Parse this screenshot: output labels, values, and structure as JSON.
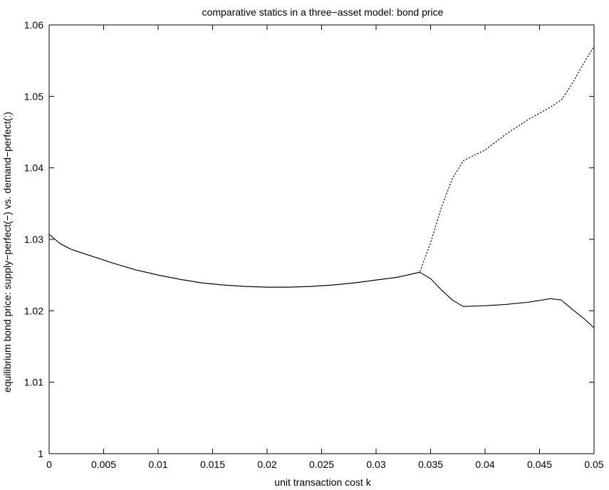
{
  "chart_data": {
    "type": "line",
    "title": "comparative statics in a three−asset model: bond price",
    "xlabel": "unit transaction cost k",
    "ylabel": "equilibrium bond price: supply−perfect(−) vs. demand−perfect(:)",
    "xlim": [
      0,
      0.05
    ],
    "ylim": [
      1,
      1.06
    ],
    "x_ticks": [
      "0",
      "0.005",
      "0.01",
      "0.015",
      "0.02",
      "0.025",
      "0.03",
      "0.035",
      "0.04",
      "0.045",
      "0.05"
    ],
    "y_ticks": [
      "1",
      "1.01",
      "1.02",
      "1.03",
      "1.04",
      "1.05",
      "1.06"
    ],
    "grid": false,
    "series": [
      {
        "name": "supply-perfect",
        "style": "solid",
        "color": "#000000",
        "x": [
          0,
          0.001,
          0.002,
          0.004,
          0.006,
          0.008,
          0.01,
          0.012,
          0.014,
          0.016,
          0.018,
          0.02,
          0.022,
          0.024,
          0.026,
          0.028,
          0.03,
          0.032,
          0.034,
          0.035,
          0.036,
          0.037,
          0.038,
          0.04,
          0.042,
          0.044,
          0.046,
          0.047,
          0.048,
          0.049,
          0.05
        ],
        "y": [
          1.0307,
          1.0294,
          1.0286,
          1.0276,
          1.0266,
          1.0257,
          1.025,
          1.0244,
          1.0239,
          1.0236,
          1.0234,
          1.0233,
          1.0233,
          1.0234,
          1.0236,
          1.0239,
          1.0243,
          1.0247,
          1.0254,
          1.0245,
          1.0229,
          1.0215,
          1.0206,
          1.0207,
          1.0209,
          1.0212,
          1.0217,
          1.0215,
          1.0202,
          1.019,
          1.0176
        ]
      },
      {
        "name": "demand-perfect",
        "style": "dotted",
        "color": "#000000",
        "x": [
          0,
          0.001,
          0.002,
          0.004,
          0.006,
          0.008,
          0.01,
          0.012,
          0.014,
          0.016,
          0.018,
          0.02,
          0.022,
          0.024,
          0.026,
          0.028,
          0.03,
          0.032,
          0.034,
          0.035,
          0.036,
          0.037,
          0.038,
          0.04,
          0.042,
          0.044,
          0.046,
          0.047,
          0.048,
          0.049,
          0.05
        ],
        "y": [
          1.0307,
          1.0294,
          1.0286,
          1.0276,
          1.0266,
          1.0257,
          1.025,
          1.0244,
          1.0239,
          1.0236,
          1.0234,
          1.0233,
          1.0233,
          1.0234,
          1.0236,
          1.0239,
          1.0243,
          1.0247,
          1.0254,
          1.0295,
          1.0345,
          1.0385,
          1.041,
          1.0425,
          1.0448,
          1.0468,
          1.0485,
          1.0495,
          1.0518,
          1.0545,
          1.057
        ]
      }
    ]
  }
}
